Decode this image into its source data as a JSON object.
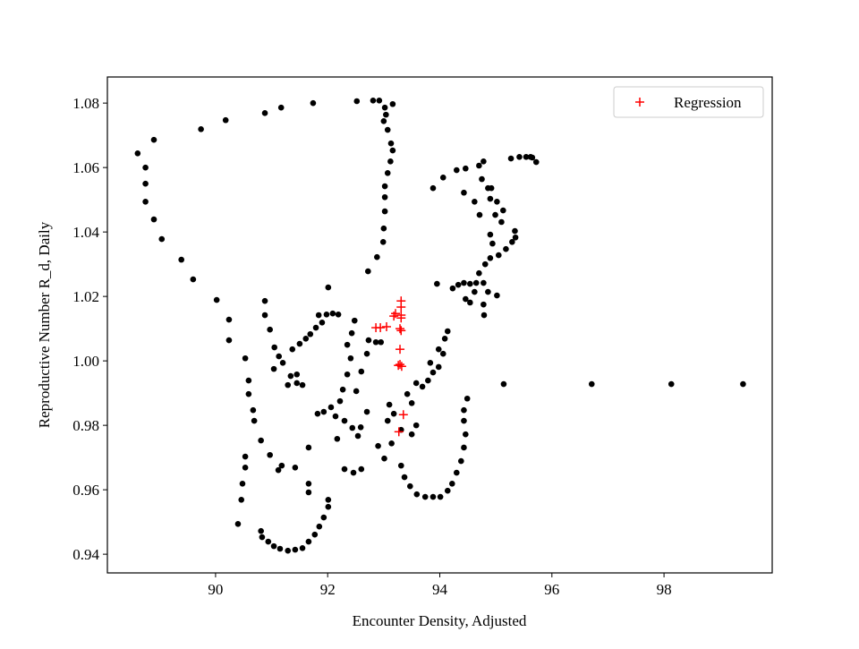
{
  "chart_data": {
    "type": "scatter",
    "xlabel": "Encounter Density, Adjusted",
    "ylabel": "Reproductive Number R_d, Daily",
    "xlim": [
      88.07,
      99.93
    ],
    "ylim": [
      0.9342,
      1.0881
    ],
    "xticks": [
      90,
      92,
      94,
      96,
      98
    ],
    "yticks": [
      0.94,
      0.96,
      0.98,
      {
        "value": 1,
        "label": "1.00"
      },
      1.02,
      1.04,
      1.06,
      1.08
    ],
    "legend": "upper right",
    "series": [
      {
        "color": "#000000",
        "marker": "dot",
        "x": [
          88.61,
          88.75,
          88.75,
          88.75,
          88.9,
          89.04,
          89.39,
          89.6,
          90.02,
          90.24,
          90.24,
          90.53,
          90.59,
          90.59,
          90.67,
          90.69,
          90.81,
          90.97,
          91.12,
          88.9,
          89.74,
          90.18,
          90.88,
          91.17,
          91.74,
          92.52,
          92.81,
          92.92,
          93.16,
          93.02,
          93.04,
          93.0,
          93.07,
          93.13,
          93.16,
          93.12,
          93.07,
          93.02,
          93.02,
          93.02,
          93.0,
          92.99,
          92.88,
          92.72,
          90.53,
          90.53,
          90.48,
          90.46,
          90.4,
          90.81,
          90.83,
          90.94,
          91.04,
          91.15,
          91.29,
          91.42,
          91.55,
          91.66,
          91.77,
          91.85,
          91.93,
          92.01,
          92.01,
          91.66,
          91.66,
          91.66,
          90.88,
          90.88,
          90.97,
          91.05,
          91.13,
          91.2,
          91.04,
          91.34,
          91.29,
          91.45,
          91.55,
          91.45,
          91.18,
          91.42,
          91.37,
          91.5,
          91.61,
          91.69,
          91.79,
          91.9,
          91.84,
          91.98,
          92.09,
          92.19,
          92.01,
          91.82,
          91.93,
          92.06,
          92.22,
          92.27,
          92.35,
          92.41,
          92.35,
          92.43,
          92.48,
          92.14,
          92.3,
          92.44,
          92.54,
          92.59,
          92.7,
          92.51,
          92.6,
          92.7,
          92.73,
          92.86,
          92.95,
          92.3,
          92.46,
          92.6,
          92.17,
          93.07,
          93.18,
          93.31,
          93.42,
          93.5,
          93.58,
          93.69,
          93.79,
          93.88,
          93.98,
          94.06,
          94.09,
          94.14,
          93.98,
          93.83,
          92.9,
          93.01,
          93.14,
          93.31,
          93.37,
          93.47,
          93.59,
          93.74,
          93.88,
          94.01,
          94.14,
          94.22,
          94.3,
          94.38,
          94.43,
          94.46,
          94.43,
          94.43,
          94.49,
          93.5,
          93.58,
          93.95,
          94.23,
          94.33,
          94.43,
          94.54,
          94.65,
          94.78,
          94.62,
          94.86,
          95.02,
          94.46,
          94.54,
          94.78,
          94.79,
          94.7,
          94.81,
          94.9,
          95.05,
          95.18,
          95.29,
          95.35,
          95.34,
          95.1,
          94.99,
          94.9,
          94.86,
          94.75,
          94.7,
          94.78,
          94.92,
          95.02,
          95.13,
          94.43,
          94.62,
          94.71,
          93.88,
          94.06,
          94.3,
          94.46,
          95.27,
          95.42,
          95.54,
          95.65,
          95.72,
          95.62,
          94.94,
          94.9,
          95.14,
          96.71,
          98.13,
          99.41,
          93.1
        ],
        "values": [
          1.0644,
          1.06,
          1.055,
          1.0494,
          1.0439,
          1.0378,
          1.0314,
          1.0253,
          1.0189,
          1.0128,
          1.0064,
          1.0008,
          0.9939,
          0.9897,
          0.9847,
          0.9814,
          0.9753,
          0.9708,
          0.9661,
          1.0686,
          1.0719,
          1.0747,
          1.0769,
          1.0786,
          1.08,
          1.0806,
          1.0808,
          1.0808,
          1.0797,
          1.0786,
          1.0764,
          1.0744,
          1.0717,
          1.0675,
          1.0653,
          1.0619,
          1.0583,
          1.0542,
          1.0508,
          1.0464,
          1.0411,
          1.0369,
          1.0322,
          1.0278,
          0.9703,
          0.9669,
          0.9619,
          0.9569,
          0.9494,
          0.9472,
          0.9453,
          0.9439,
          0.9425,
          0.9417,
          0.9411,
          0.9414,
          0.9419,
          0.9439,
          0.9461,
          0.9486,
          0.9514,
          0.9547,
          0.9569,
          0.9731,
          0.9619,
          0.9592,
          1.0186,
          1.0142,
          1.0097,
          1.0042,
          1.0014,
          0.9994,
          0.9975,
          0.9953,
          0.9925,
          0.9931,
          0.9925,
          0.9958,
          0.9675,
          0.9669,
          1.0036,
          1.0053,
          1.0069,
          1.0083,
          1.0103,
          1.0119,
          1.0142,
          1.0144,
          1.0147,
          1.0144,
          1.0228,
          0.9836,
          0.9842,
          0.9856,
          0.9875,
          0.9911,
          0.9958,
          1.0008,
          1.005,
          1.0086,
          1.0125,
          0.9828,
          0.9814,
          0.9792,
          0.9767,
          0.9794,
          0.9842,
          0.9906,
          0.9967,
          1.0022,
          1.0064,
          1.0058,
          1.0058,
          0.9664,
          0.9653,
          0.9664,
          0.9758,
          0.9814,
          0.9836,
          0.9786,
          0.9897,
          0.9869,
          0.9931,
          0.992,
          0.9939,
          0.9964,
          0.9981,
          1.0022,
          1.0069,
          1.0092,
          1.0036,
          0.9994,
          0.9736,
          0.9697,
          0.9744,
          0.9675,
          0.9639,
          0.9611,
          0.9586,
          0.9578,
          0.9578,
          0.9578,
          0.9597,
          0.9619,
          0.9653,
          0.9689,
          0.9731,
          0.9772,
          0.9814,
          0.9847,
          0.9883,
          0.9772,
          0.98,
          1.0239,
          1.0225,
          1.0236,
          1.0242,
          1.0239,
          1.0242,
          1.0242,
          1.0214,
          1.0214,
          1.0203,
          1.0192,
          1.0181,
          1.0175,
          1.0142,
          1.0272,
          1.03,
          1.0319,
          1.0328,
          1.0347,
          1.0369,
          1.0383,
          1.0403,
          1.0431,
          1.0453,
          1.0503,
          1.0536,
          1.0564,
          1.0606,
          1.0619,
          1.0536,
          1.0494,
          1.0467,
          1.0522,
          1.0494,
          1.0453,
          1.0536,
          1.0569,
          1.0592,
          1.0597,
          1.0628,
          1.0633,
          1.0633,
          1.0631,
          1.0617,
          1.0633,
          1.0364,
          1.0392,
          0.9928,
          0.9928,
          0.9928,
          0.9928,
          0.9864
        ]
      },
      {
        "name": "Regression",
        "color": "#ff0000",
        "marker": "plus",
        "x": [
          93.31,
          93.31,
          93.31,
          93.31,
          93.29,
          93.31,
          93.21,
          93.18,
          93.05,
          92.94,
          92.86,
          93.29,
          93.29,
          93.32,
          93.26,
          93.35,
          93.27
        ],
        "values": [
          1.0186,
          1.0167,
          1.0142,
          1.0133,
          1.01,
          1.0094,
          1.0147,
          1.0139,
          1.0106,
          1.0103,
          1.0103,
          1.0036,
          0.9989,
          0.9983,
          0.9986,
          0.9833,
          0.978
        ]
      }
    ]
  }
}
